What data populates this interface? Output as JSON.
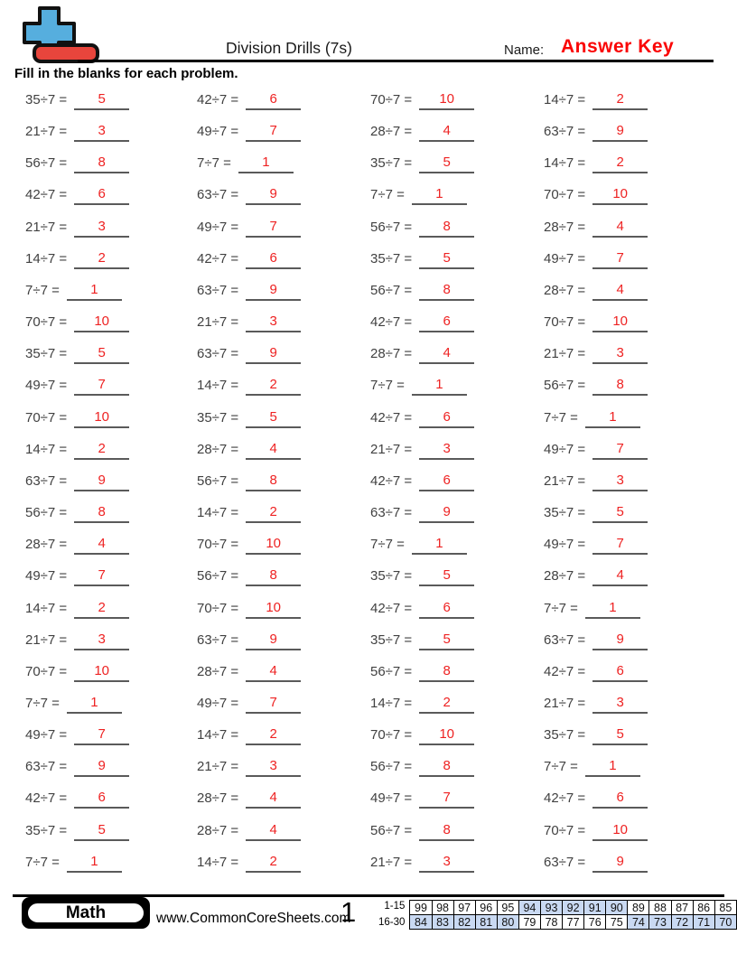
{
  "header": {
    "title": "Division Drills (7s)",
    "name_label": "Name:",
    "name_value": "Answer Key",
    "instructions": "Fill in the blanks for each problem."
  },
  "problems": {
    "items": [
      {
        "q": "35÷7 =",
        "a": "5"
      },
      {
        "q": "42÷7 =",
        "a": "6"
      },
      {
        "q": "70÷7 =",
        "a": "10"
      },
      {
        "q": "14÷7 =",
        "a": "2"
      },
      {
        "q": "21÷7 =",
        "a": "3"
      },
      {
        "q": "49÷7 =",
        "a": "7"
      },
      {
        "q": "28÷7 =",
        "a": "4"
      },
      {
        "q": "63÷7 =",
        "a": "9"
      },
      {
        "q": "56÷7 =",
        "a": "8"
      },
      {
        "q": "7÷7 =",
        "a": "1"
      },
      {
        "q": "35÷7 =",
        "a": "5"
      },
      {
        "q": "14÷7 =",
        "a": "2"
      },
      {
        "q": "42÷7 =",
        "a": "6"
      },
      {
        "q": "63÷7 =",
        "a": "9"
      },
      {
        "q": "7÷7 =",
        "a": "1"
      },
      {
        "q": "70÷7 =",
        "a": "10"
      },
      {
        "q": "21÷7 =",
        "a": "3"
      },
      {
        "q": "49÷7 =",
        "a": "7"
      },
      {
        "q": "56÷7 =",
        "a": "8"
      },
      {
        "q": "28÷7 =",
        "a": "4"
      },
      {
        "q": "14÷7 =",
        "a": "2"
      },
      {
        "q": "42÷7 =",
        "a": "6"
      },
      {
        "q": "35÷7 =",
        "a": "5"
      },
      {
        "q": "49÷7 =",
        "a": "7"
      },
      {
        "q": "7÷7 =",
        "a": "1"
      },
      {
        "q": "63÷7 =",
        "a": "9"
      },
      {
        "q": "56÷7 =",
        "a": "8"
      },
      {
        "q": "28÷7 =",
        "a": "4"
      },
      {
        "q": "70÷7 =",
        "a": "10"
      },
      {
        "q": "21÷7 =",
        "a": "3"
      },
      {
        "q": "42÷7 =",
        "a": "6"
      },
      {
        "q": "70÷7 =",
        "a": "10"
      },
      {
        "q": "35÷7 =",
        "a": "5"
      },
      {
        "q": "63÷7 =",
        "a": "9"
      },
      {
        "q": "28÷7 =",
        "a": "4"
      },
      {
        "q": "21÷7 =",
        "a": "3"
      },
      {
        "q": "49÷7 =",
        "a": "7"
      },
      {
        "q": "14÷7 =",
        "a": "2"
      },
      {
        "q": "7÷7 =",
        "a": "1"
      },
      {
        "q": "56÷7 =",
        "a": "8"
      },
      {
        "q": "70÷7 =",
        "a": "10"
      },
      {
        "q": "35÷7 =",
        "a": "5"
      },
      {
        "q": "42÷7 =",
        "a": "6"
      },
      {
        "q": "7÷7 =",
        "a": "1"
      },
      {
        "q": "14÷7 =",
        "a": "2"
      },
      {
        "q": "28÷7 =",
        "a": "4"
      },
      {
        "q": "21÷7 =",
        "a": "3"
      },
      {
        "q": "49÷7 =",
        "a": "7"
      },
      {
        "q": "63÷7 =",
        "a": "9"
      },
      {
        "q": "56÷7 =",
        "a": "8"
      },
      {
        "q": "42÷7 =",
        "a": "6"
      },
      {
        "q": "21÷7 =",
        "a": "3"
      },
      {
        "q": "56÷7 =",
        "a": "8"
      },
      {
        "q": "14÷7 =",
        "a": "2"
      },
      {
        "q": "63÷7 =",
        "a": "9"
      },
      {
        "q": "35÷7 =",
        "a": "5"
      },
      {
        "q": "28÷7 =",
        "a": "4"
      },
      {
        "q": "70÷7 =",
        "a": "10"
      },
      {
        "q": "7÷7 =",
        "a": "1"
      },
      {
        "q": "49÷7 =",
        "a": "7"
      },
      {
        "q": "49÷7 =",
        "a": "7"
      },
      {
        "q": "56÷7 =",
        "a": "8"
      },
      {
        "q": "35÷7 =",
        "a": "5"
      },
      {
        "q": "28÷7 =",
        "a": "4"
      },
      {
        "q": "14÷7 =",
        "a": "2"
      },
      {
        "q": "70÷7 =",
        "a": "10"
      },
      {
        "q": "42÷7 =",
        "a": "6"
      },
      {
        "q": "7÷7 =",
        "a": "1"
      },
      {
        "q": "21÷7 =",
        "a": "3"
      },
      {
        "q": "63÷7 =",
        "a": "9"
      },
      {
        "q": "35÷7 =",
        "a": "5"
      },
      {
        "q": "63÷7 =",
        "a": "9"
      },
      {
        "q": "70÷7 =",
        "a": "10"
      },
      {
        "q": "28÷7 =",
        "a": "4"
      },
      {
        "q": "56÷7 =",
        "a": "8"
      },
      {
        "q": "42÷7 =",
        "a": "6"
      },
      {
        "q": "7÷7 =",
        "a": "1"
      },
      {
        "q": "49÷7 =",
        "a": "7"
      },
      {
        "q": "14÷7 =",
        "a": "2"
      },
      {
        "q": "21÷7 =",
        "a": "3"
      },
      {
        "q": "49÷7 =",
        "a": "7"
      },
      {
        "q": "14÷7 =",
        "a": "2"
      },
      {
        "q": "70÷7 =",
        "a": "10"
      },
      {
        "q": "35÷7 =",
        "a": "5"
      },
      {
        "q": "63÷7 =",
        "a": "9"
      },
      {
        "q": "21÷7 =",
        "a": "3"
      },
      {
        "q": "56÷7 =",
        "a": "8"
      },
      {
        "q": "7÷7 =",
        "a": "1"
      },
      {
        "q": "42÷7 =",
        "a": "6"
      },
      {
        "q": "28÷7 =",
        "a": "4"
      },
      {
        "q": "49÷7 =",
        "a": "7"
      },
      {
        "q": "42÷7 =",
        "a": "6"
      },
      {
        "q": "35÷7 =",
        "a": "5"
      },
      {
        "q": "28÷7 =",
        "a": "4"
      },
      {
        "q": "56÷7 =",
        "a": "8"
      },
      {
        "q": "70÷7 =",
        "a": "10"
      },
      {
        "q": "7÷7 =",
        "a": "1"
      },
      {
        "q": "14÷7 =",
        "a": "2"
      },
      {
        "q": "21÷7 =",
        "a": "3"
      },
      {
        "q": "63÷7 =",
        "a": "9"
      }
    ]
  },
  "footer": {
    "subject": "Math",
    "website": "www.CommonCoreSheets.com",
    "page_number": "1",
    "score_table": {
      "row1_label": "1-15",
      "row2_label": "16-30",
      "row1_values": [
        "99",
        "98",
        "97",
        "96",
        "95",
        "94",
        "93",
        "92",
        "91",
        "90",
        "89",
        "88",
        "87",
        "86",
        "85"
      ],
      "row2_values": [
        "84",
        "83",
        "82",
        "81",
        "80",
        "79",
        "78",
        "77",
        "76",
        "75",
        "74",
        "73",
        "72",
        "71",
        "70"
      ],
      "row1_shaded": [
        false,
        false,
        false,
        false,
        false,
        true,
        true,
        true,
        true,
        true,
        false,
        false,
        false,
        false,
        false
      ],
      "row2_shaded": [
        true,
        true,
        true,
        true,
        true,
        false,
        false,
        false,
        false,
        false,
        true,
        true,
        true,
        true,
        true
      ]
    }
  },
  "icons": {
    "logo": "plus-minus-logo-icon"
  },
  "colors": {
    "answer_red": "#ee2222",
    "answer_key_red": "#fa0505",
    "equation_gray": "#414141",
    "underline_gray": "#5a5a5a",
    "table_shade": "#c9d9f2",
    "logo_blue": "#56aede",
    "logo_red": "#e8453c"
  }
}
